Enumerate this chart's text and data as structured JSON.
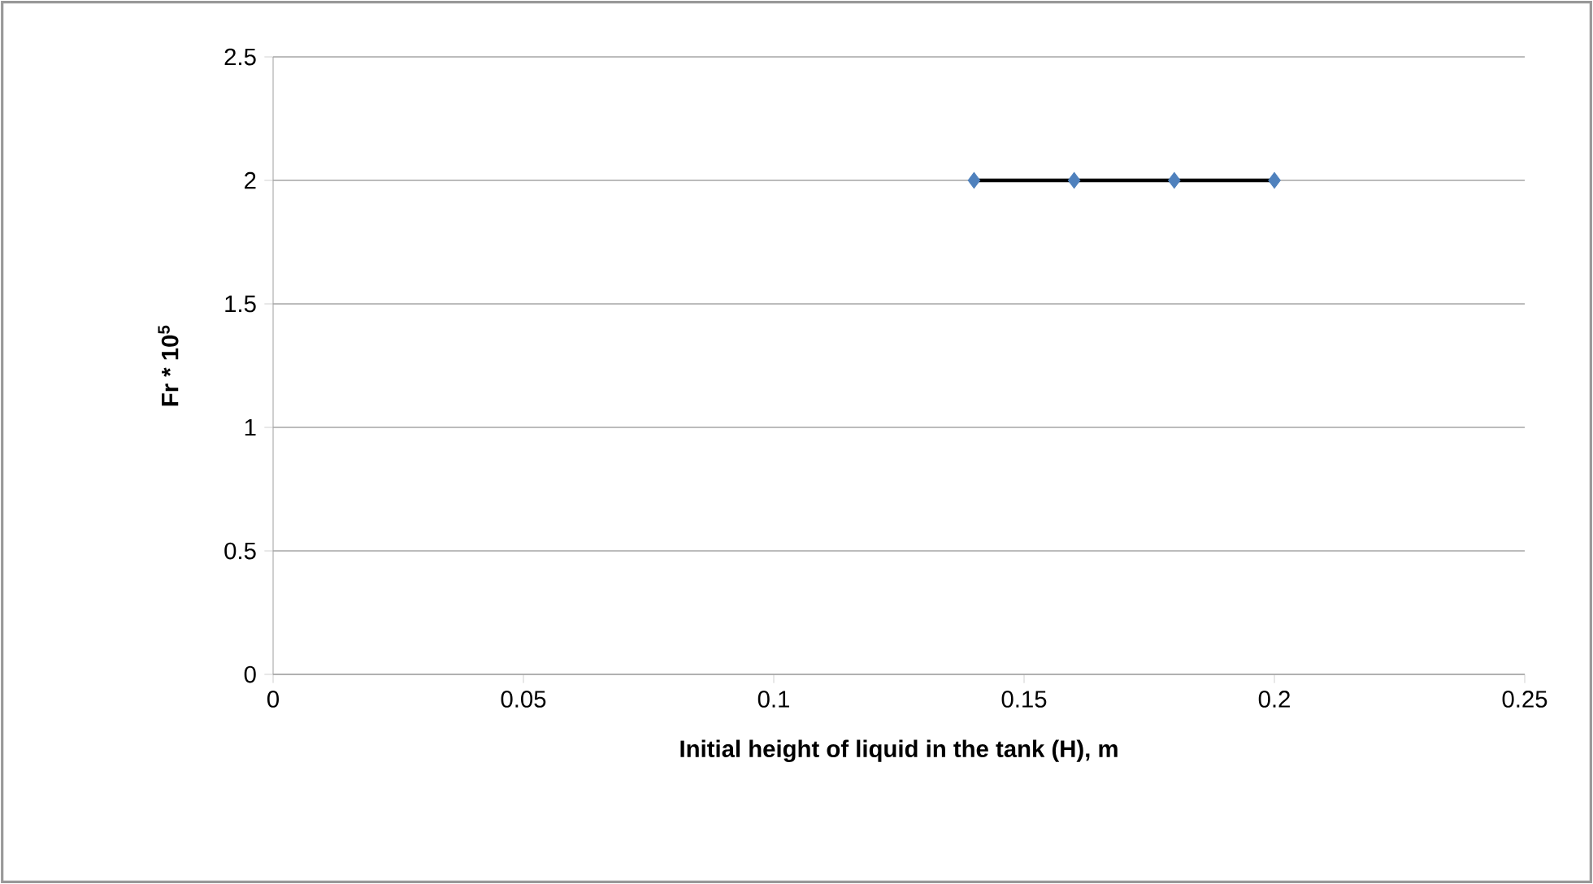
{
  "chart_data": {
    "type": "line",
    "xlabel": "Initial height of liquid in the tank (H), m",
    "ylabel": "Fr * 10$^{5}$",
    "x": [
      0.14,
      0.16,
      0.18,
      0.2
    ],
    "series": [
      {
        "color": "#000000",
        "marker": "none",
        "values": [
          2,
          2,
          2,
          2
        ]
      },
      {
        "type": "scatter",
        "color": "#4f81bd",
        "marker": "diamond",
        "values": [
          2,
          2,
          2,
          2
        ]
      }
    ],
    "xlim": [
      0,
      0.25
    ],
    "xticks": [
      0,
      0.05,
      0.1,
      0.15,
      0.2,
      0.25
    ],
    "ylim": [
      0,
      2.5
    ],
    "yticks": [
      0,
      0.5,
      1,
      1.5,
      2,
      2.5
    ],
    "grid": "y"
  }
}
